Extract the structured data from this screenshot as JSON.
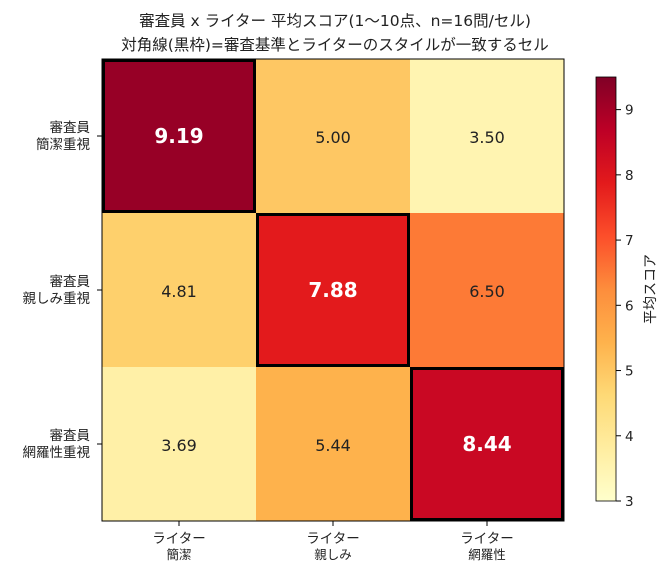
{
  "chart_data": {
    "type": "heatmap",
    "title": "審査員 x ライター 平均スコア(1〜10点、n=16問/セル)",
    "subtitle": "対角線(黒枠)=審査基準とライターのスタイルが一致するセル",
    "rows": [
      [
        "審査員",
        "簡潔重視"
      ],
      [
        "審査員",
        "親しみ重視"
      ],
      [
        "審査員",
        "網羅性重視"
      ]
    ],
    "columns": [
      [
        "ライター",
        "簡潔"
      ],
      [
        "ライター",
        "親しみ"
      ],
      [
        "ライター",
        "網羅性"
      ]
    ],
    "values": [
      [
        9.19,
        5.0,
        3.5
      ],
      [
        4.81,
        7.88,
        6.5
      ],
      [
        3.69,
        5.44,
        8.44
      ]
    ],
    "value_labels": [
      [
        "9.19",
        "5.00",
        "3.50"
      ],
      [
        "4.81",
        "7.88",
        "6.50"
      ],
      [
        "3.69",
        "5.44",
        "8.44"
      ]
    ],
    "highlighted_cells": [
      [
        0,
        0
      ],
      [
        1,
        1
      ],
      [
        2,
        2
      ]
    ],
    "colorbar": {
      "label": "平均スコア",
      "range": [
        3,
        9.5
      ],
      "ticks": [
        "3",
        "4",
        "5",
        "6",
        "7",
        "8",
        "9"
      ],
      "colormap": "YlOrRd"
    },
    "colors": {
      "highlight_border": "#000000",
      "text_dark": "#222222",
      "text_light": "#ffffff"
    }
  }
}
